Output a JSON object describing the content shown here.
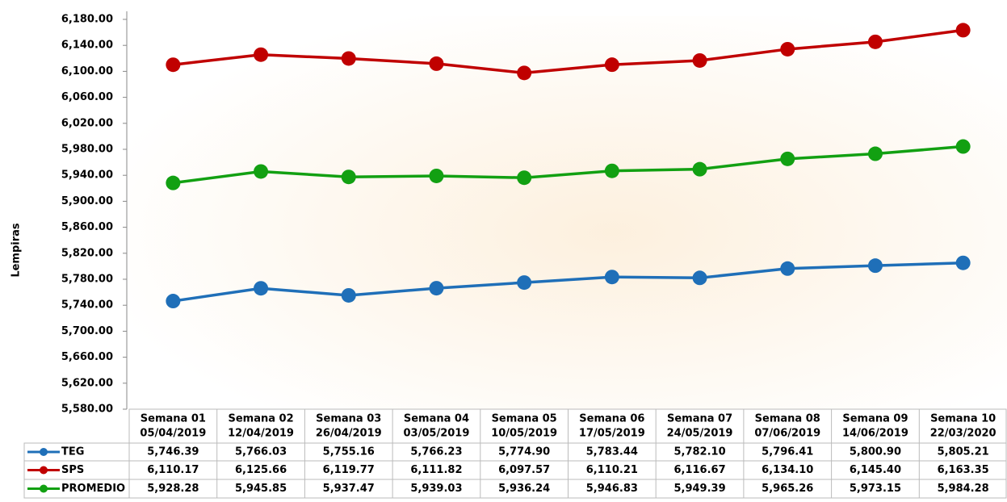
{
  "chart_data": {
    "type": "line",
    "y_label": "Lempiras",
    "categories": [
      [
        "Semana 01",
        "05/04/2019"
      ],
      [
        "Semana 02",
        "12/04/2019"
      ],
      [
        "Semana 03",
        "26/04/2019"
      ],
      [
        "Semana 04",
        "03/05/2019"
      ],
      [
        "Semana 05",
        "10/05/2019"
      ],
      [
        "Semana 06",
        "17/05/2019"
      ],
      [
        "Semana 07",
        "24/05/2019"
      ],
      [
        "Semana 08",
        "07/06/2019"
      ],
      [
        "Semana 09",
        "14/06/2019"
      ],
      [
        "Semana 10",
        "22/03/2020"
      ]
    ],
    "series": [
      {
        "name": "TEG",
        "color": "#1f6fb8",
        "values": [
          5746.39,
          5766.03,
          5755.16,
          5766.23,
          5774.9,
          5783.44,
          5782.1,
          5796.41,
          5800.9,
          5805.21
        ],
        "value_labels": [
          "5,746.39",
          "5,766.03",
          "5,755.16",
          "5,766.23",
          "5,774.90",
          "5,783.44",
          "5,782.10",
          "5,796.41",
          "5,800.90",
          "5,805.21"
        ]
      },
      {
        "name": "SPS",
        "color": "#c00000",
        "values": [
          6110.17,
          6125.66,
          6119.77,
          6111.82,
          6097.57,
          6110.21,
          6116.67,
          6134.1,
          6145.4,
          6163.35
        ],
        "value_labels": [
          "6,110.17",
          "6,125.66",
          "6,119.77",
          "6,111.82",
          "6,097.57",
          "6,110.21",
          "6,116.67",
          "6,134.10",
          "6,145.40",
          "6,163.35"
        ]
      },
      {
        "name": "PROMEDIO",
        "color": "#12a012",
        "values": [
          5928.28,
          5945.85,
          5937.47,
          5939.03,
          5936.24,
          5946.83,
          5949.39,
          5965.26,
          5973.15,
          5984.28
        ],
        "value_labels": [
          "5,928.28",
          "5,945.85",
          "5,937.47",
          "5,939.03",
          "5,936.24",
          "5,946.83",
          "5,949.39",
          "5,965.26",
          "5,973.15",
          "5,984.28"
        ]
      }
    ],
    "ylim": [
      5580,
      6180
    ],
    "yticks": [
      {
        "value": 5580,
        "label": "5,580.00"
      },
      {
        "value": 5620,
        "label": "5,620.00"
      },
      {
        "value": 5660,
        "label": "5,660.00"
      },
      {
        "value": 5700,
        "label": "5,700.00"
      },
      {
        "value": 5740,
        "label": "5,740.00"
      },
      {
        "value": 5780,
        "label": "5,780.00"
      },
      {
        "value": 5820,
        "label": "5,820.00"
      },
      {
        "value": 5860,
        "label": "5,860.00"
      },
      {
        "value": 5900,
        "label": "5,900.00"
      },
      {
        "value": 5940,
        "label": "5,940.00"
      },
      {
        "value": 5980,
        "label": "5,980.00"
      },
      {
        "value": 6020,
        "label": "6,020.00"
      },
      {
        "value": 6060,
        "label": "6,060.00"
      },
      {
        "value": 6100,
        "label": "6,100.00"
      },
      {
        "value": 6140,
        "label": "6,140.00"
      },
      {
        "value": 6180,
        "label": "6,180.00"
      }
    ]
  }
}
